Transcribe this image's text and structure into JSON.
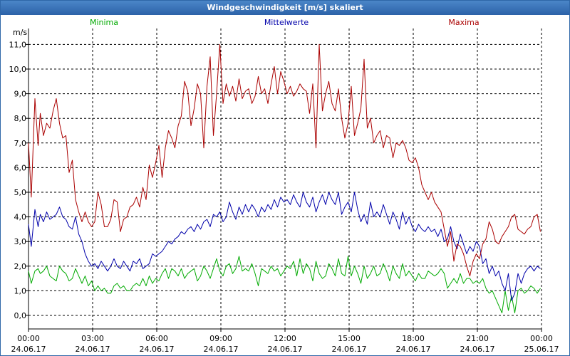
{
  "window": {
    "title": "Windgeschwindigkeit [m/s] skaliert"
  },
  "colors": {
    "min": "#00aa00",
    "mean": "#0000aa",
    "max": "#aa0000",
    "title_bg": "#2c62a8",
    "grid": "#000000"
  },
  "chart_data": {
    "type": "line",
    "title": "Windgeschwindigkeit [m/s] skaliert",
    "ylabel": "m/s",
    "ylim": [
      -0.4,
      11.5
    ],
    "yticks": [
      "0,0",
      "1,0",
      "2,0",
      "3,0",
      "4,0",
      "5,0",
      "6,0",
      "7,0",
      "8,0",
      "9,0",
      "10,0",
      "11,0"
    ],
    "yticks_values": [
      0,
      1,
      2,
      3,
      4,
      5,
      6,
      7,
      8,
      9,
      10,
      11
    ],
    "xlim_hours": [
      0,
      24
    ],
    "xticks": [
      {
        "time": "00:00",
        "date": "24.06.17"
      },
      {
        "time": "03:00",
        "date": "24.06.17"
      },
      {
        "time": "06:00",
        "date": "24.06.17"
      },
      {
        "time": "09:00",
        "date": "24.06.17"
      },
      {
        "time": "12:00",
        "date": "24.06.17"
      },
      {
        "time": "15:00",
        "date": "24.06.17"
      },
      {
        "time": "18:00",
        "date": "24.06.17"
      },
      {
        "time": "21:00",
        "date": "24.06.17"
      },
      {
        "time": "00:00",
        "date": "25.06.17"
      }
    ],
    "grid": true,
    "series": [
      {
        "name": "Minima",
        "color": "#00aa00",
        "t": [
          0.0,
          0.13,
          0.3,
          0.45,
          0.55,
          0.7,
          0.85,
          1.0,
          1.15,
          1.3,
          1.45,
          1.6,
          1.75,
          1.9,
          2.05,
          2.2,
          2.35,
          2.5,
          2.65,
          2.8,
          2.95,
          3.1,
          3.25,
          3.4,
          3.55,
          3.7,
          3.85,
          4.0,
          4.15,
          4.3,
          4.45,
          4.6,
          4.75,
          4.9,
          5.05,
          5.2,
          5.35,
          5.5,
          5.65,
          5.8,
          5.95,
          6.1,
          6.25,
          6.4,
          6.55,
          6.7,
          6.85,
          7.0,
          7.15,
          7.3,
          7.45,
          7.6,
          7.75,
          7.9,
          8.05,
          8.2,
          8.35,
          8.5,
          8.65,
          8.8,
          8.95,
          9.1,
          9.25,
          9.4,
          9.55,
          9.7,
          9.85,
          10.0,
          10.15,
          10.3,
          10.45,
          10.6,
          10.75,
          10.9,
          11.05,
          11.2,
          11.35,
          11.5,
          11.65,
          11.8,
          11.95,
          12.1,
          12.25,
          12.4,
          12.55,
          12.7,
          12.85,
          13.0,
          13.15,
          13.3,
          13.45,
          13.6,
          13.75,
          13.9,
          14.05,
          14.2,
          14.35,
          14.5,
          14.65,
          14.8,
          14.95,
          15.1,
          15.25,
          15.4,
          15.55,
          15.7,
          15.85,
          16.0,
          16.15,
          16.3,
          16.45,
          16.6,
          16.75,
          16.9,
          17.05,
          17.2,
          17.35,
          17.5,
          17.65,
          17.8,
          17.95,
          18.1,
          18.25,
          18.4,
          18.55,
          18.7,
          18.85,
          19.0,
          19.15,
          19.3,
          19.45,
          19.6,
          19.75,
          19.9,
          20.05,
          20.2,
          20.35,
          20.5,
          20.65,
          20.8,
          20.95,
          21.1,
          21.25,
          21.4,
          21.55,
          21.7,
          21.85,
          22.0,
          22.15,
          22.3,
          22.45,
          22.6,
          22.75,
          22.9,
          23.05,
          23.2,
          23.35,
          23.5,
          23.65,
          23.8,
          23.95
        ],
        "v": [
          1.8,
          1.3,
          1.8,
          1.9,
          1.7,
          1.8,
          2.0,
          1.6,
          1.5,
          1.4,
          2.0,
          1.8,
          1.7,
          1.4,
          1.5,
          1.9,
          1.6,
          1.3,
          1.6,
          1.2,
          1.4,
          1.0,
          1.2,
          1.0,
          1.1,
          0.9,
          0.9,
          1.2,
          1.3,
          1.1,
          1.2,
          1.0,
          1.0,
          1.2,
          1.3,
          1.2,
          1.5,
          1.2,
          1.6,
          1.3,
          1.5,
          1.4,
          1.7,
          1.9,
          1.5,
          1.9,
          1.8,
          1.6,
          1.9,
          1.5,
          1.7,
          1.8,
          1.9,
          1.4,
          1.6,
          2.0,
          1.8,
          1.5,
          1.9,
          2.3,
          1.8,
          1.6,
          2.0,
          2.1,
          1.7,
          1.9,
          2.4,
          1.8,
          1.9,
          1.8,
          2.1,
          1.7,
          1.2,
          1.9,
          1.8,
          1.7,
          2.0,
          1.8,
          1.9,
          1.6,
          1.8,
          2.0,
          1.9,
          2.2,
          1.6,
          2.3,
          1.7,
          2.1,
          1.9,
          1.4,
          2.2,
          1.7,
          1.5,
          1.6,
          2.1,
          1.9,
          1.6,
          2.3,
          1.7,
          1.6,
          2.4,
          1.6,
          2.0,
          1.7,
          1.3,
          2.0,
          1.5,
          1.7,
          2.0,
          1.6,
          1.7,
          2.1,
          1.8,
          1.4,
          2.0,
          1.7,
          1.5,
          2.1,
          1.6,
          1.8,
          1.6,
          1.4,
          1.7,
          1.5,
          1.5,
          1.8,
          1.7,
          1.6,
          1.7,
          1.9,
          1.7,
          1.1,
          1.3,
          1.5,
          1.3,
          1.7,
          1.3,
          1.5,
          1.5,
          1.3,
          1.4,
          1.3,
          1.5,
          1.1,
          0.9,
          1.0,
          0.7,
          0.4,
          0.1,
          1.0,
          0.2,
          0.8,
          0.1,
          1.0,
          1.1,
          0.9,
          1.0,
          1.2,
          1.1,
          0.9,
          1.1,
          1.2,
          1.0
        ]
      },
      {
        "name": "Mittelwerte",
        "color": "#0000aa",
        "t": [
          0.0,
          0.13,
          0.3,
          0.45,
          0.55,
          0.7,
          0.85,
          1.0,
          1.15,
          1.3,
          1.45,
          1.6,
          1.75,
          1.9,
          2.05,
          2.2,
          2.35,
          2.5,
          2.65,
          2.8,
          2.95,
          3.1,
          3.25,
          3.4,
          3.55,
          3.7,
          3.85,
          4.0,
          4.15,
          4.3,
          4.45,
          4.6,
          4.75,
          4.9,
          5.05,
          5.2,
          5.35,
          5.5,
          5.65,
          5.8,
          5.95,
          6.1,
          6.25,
          6.4,
          6.55,
          6.7,
          6.85,
          7.0,
          7.15,
          7.3,
          7.45,
          7.6,
          7.75,
          7.9,
          8.05,
          8.2,
          8.35,
          8.5,
          8.65,
          8.8,
          8.95,
          9.1,
          9.25,
          9.4,
          9.55,
          9.7,
          9.85,
          10.0,
          10.15,
          10.3,
          10.45,
          10.6,
          10.75,
          10.9,
          11.05,
          11.2,
          11.35,
          11.5,
          11.65,
          11.8,
          11.95,
          12.1,
          12.25,
          12.4,
          12.55,
          12.7,
          12.85,
          13.0,
          13.15,
          13.3,
          13.45,
          13.6,
          13.75,
          13.9,
          14.05,
          14.2,
          14.35,
          14.5,
          14.65,
          14.8,
          14.95,
          15.1,
          15.25,
          15.4,
          15.55,
          15.7,
          15.85,
          16.0,
          16.15,
          16.3,
          16.45,
          16.6,
          16.75,
          16.9,
          17.05,
          17.2,
          17.35,
          17.5,
          17.65,
          17.8,
          17.95,
          18.1,
          18.25,
          18.4,
          18.55,
          18.7,
          18.85,
          19.0,
          19.15,
          19.3,
          19.45,
          19.6,
          19.75,
          19.9,
          20.05,
          20.2,
          20.35,
          20.5,
          20.65,
          20.8,
          20.95,
          21.1,
          21.25,
          21.4,
          21.55,
          21.7,
          21.85,
          22.0,
          22.15,
          22.3,
          22.45,
          22.6,
          22.75,
          22.9,
          23.05,
          23.2,
          23.35,
          23.5,
          23.65,
          23.8,
          23.95
        ],
        "v": [
          3.7,
          2.8,
          4.3,
          3.6,
          4.1,
          3.8,
          4.2,
          3.9,
          4.0,
          4.1,
          4.4,
          4.0,
          3.9,
          3.6,
          3.5,
          4.0,
          3.3,
          3.0,
          2.5,
          2.2,
          2.0,
          2.1,
          1.9,
          2.2,
          2.0,
          1.8,
          2.0,
          2.3,
          2.0,
          1.9,
          2.2,
          2.0,
          1.8,
          2.2,
          2.1,
          2.3,
          1.9,
          2.0,
          2.1,
          2.5,
          2.4,
          2.5,
          2.6,
          2.8,
          3.0,
          2.9,
          3.1,
          3.2,
          3.4,
          3.3,
          3.5,
          3.6,
          3.4,
          3.7,
          3.5,
          3.8,
          3.9,
          3.6,
          4.1,
          4.0,
          4.2,
          3.8,
          4.0,
          4.6,
          4.2,
          3.9,
          4.4,
          4.1,
          4.5,
          4.2,
          4.5,
          4.3,
          4.0,
          4.4,
          4.2,
          4.5,
          4.3,
          4.7,
          4.4,
          4.8,
          4.6,
          4.7,
          4.5,
          4.9,
          4.6,
          4.4,
          5.0,
          4.6,
          4.4,
          4.8,
          4.2,
          4.6,
          4.9,
          4.5,
          5.0,
          4.7,
          4.5,
          5.0,
          4.1,
          4.4,
          4.6,
          4.2,
          5.0,
          4.3,
          3.8,
          4.1,
          3.7,
          4.6,
          4.0,
          4.2,
          4.0,
          4.5,
          4.1,
          3.7,
          4.2,
          3.9,
          3.5,
          4.2,
          3.7,
          4.0,
          3.6,
          3.4,
          3.7,
          3.5,
          3.4,
          3.6,
          3.4,
          3.5,
          3.2,
          3.5,
          3.0,
          3.1,
          3.6,
          3.0,
          2.7,
          3.3,
          2.9,
          2.5,
          2.8,
          2.6,
          3.0,
          2.8,
          2.1,
          2.3,
          1.7,
          2.0,
          1.6,
          1.8,
          1.3,
          1.0,
          1.7,
          0.6,
          0.9,
          1.7,
          1.3,
          1.7,
          1.9,
          2.0,
          1.8,
          2.0,
          1.9
        ]
      },
      {
        "name": "Maxima",
        "color": "#aa0000",
        "t": [
          0.0,
          0.13,
          0.3,
          0.45,
          0.55,
          0.7,
          0.85,
          1.0,
          1.15,
          1.3,
          1.45,
          1.6,
          1.75,
          1.9,
          2.05,
          2.2,
          2.35,
          2.5,
          2.65,
          2.8,
          2.95,
          3.1,
          3.25,
          3.4,
          3.55,
          3.7,
          3.85,
          4.0,
          4.15,
          4.3,
          4.45,
          4.6,
          4.75,
          4.9,
          5.05,
          5.2,
          5.35,
          5.5,
          5.65,
          5.8,
          5.95,
          6.1,
          6.25,
          6.4,
          6.55,
          6.7,
          6.85,
          7.0,
          7.15,
          7.3,
          7.45,
          7.6,
          7.75,
          7.9,
          8.05,
          8.2,
          8.35,
          8.5,
          8.65,
          8.8,
          8.95,
          9.1,
          9.25,
          9.4,
          9.55,
          9.7,
          9.85,
          10.0,
          10.15,
          10.3,
          10.45,
          10.6,
          10.75,
          10.9,
          11.05,
          11.2,
          11.35,
          11.5,
          11.65,
          11.8,
          11.95,
          12.1,
          12.25,
          12.4,
          12.55,
          12.7,
          12.85,
          13.0,
          13.15,
          13.3,
          13.45,
          13.6,
          13.75,
          13.9,
          14.05,
          14.2,
          14.35,
          14.5,
          14.65,
          14.8,
          14.95,
          15.1,
          15.25,
          15.4,
          15.55,
          15.7,
          15.85,
          16.0,
          16.15,
          16.3,
          16.45,
          16.6,
          16.75,
          16.9,
          17.05,
          17.2,
          17.35,
          17.5,
          17.65,
          17.8,
          17.95,
          18.1,
          18.25,
          18.4,
          18.55,
          18.7,
          18.85,
          19.0,
          19.15,
          19.3,
          19.45,
          19.6,
          19.75,
          19.9,
          20.05,
          20.2,
          20.35,
          20.5,
          20.65,
          20.8,
          20.95,
          21.1,
          21.25,
          21.4,
          21.55,
          21.7,
          21.85,
          22.0,
          22.15,
          22.3,
          22.45,
          22.6,
          22.75,
          22.9,
          23.05,
          23.2,
          23.35,
          23.5,
          23.65,
          23.8,
          23.95
        ],
        "v": [
          7.0,
          4.8,
          8.8,
          6.9,
          8.2,
          7.3,
          7.8,
          7.6,
          8.3,
          8.8,
          7.8,
          7.2,
          7.3,
          5.8,
          6.3,
          4.7,
          4.2,
          3.8,
          4.2,
          3.8,
          3.6,
          3.8,
          5.0,
          4.5,
          3.6,
          3.6,
          3.9,
          4.7,
          4.6,
          3.4,
          3.9,
          4.0,
          4.4,
          4.5,
          4.8,
          4.4,
          5.2,
          4.7,
          6.1,
          5.6,
          6.2,
          6.9,
          5.6,
          6.8,
          7.5,
          7.2,
          6.8,
          7.7,
          8.1,
          9.5,
          9.1,
          7.7,
          8.4,
          9.4,
          9.0,
          6.8,
          9.3,
          10.5,
          7.3,
          9.0,
          11.0,
          8.6,
          9.4,
          8.9,
          9.3,
          8.7,
          9.6,
          8.8,
          9.1,
          9.2,
          8.6,
          8.9,
          9.7,
          9.0,
          9.2,
          8.6,
          9.4,
          10.1,
          9.0,
          9.9,
          9.5,
          9.0,
          9.3,
          8.9,
          9.1,
          9.4,
          9.2,
          9.1,
          8.2,
          9.4,
          6.8,
          11.0,
          8.3,
          9.0,
          9.5,
          8.6,
          8.3,
          9.2,
          8.0,
          7.2,
          7.8,
          9.3,
          7.3,
          7.8,
          8.4,
          10.4,
          7.6,
          8.0,
          7.0,
          7.3,
          7.5,
          6.8,
          7.3,
          7.2,
          6.4,
          7.0,
          6.9,
          7.1,
          6.8,
          6.3,
          6.2,
          6.4,
          6.0,
          5.3,
          5.0,
          4.7,
          5.0,
          4.6,
          4.4,
          4.2,
          3.5,
          2.8,
          3.4,
          2.2,
          2.9,
          2.8,
          2.5,
          2.0,
          1.6,
          2.2,
          2.5,
          2.3,
          2.9,
          3.1,
          3.8,
          3.5,
          3.0,
          2.9,
          3.2,
          3.4,
          3.6,
          4.0,
          4.1,
          3.5,
          3.4,
          3.3,
          3.5,
          3.6,
          4.0,
          4.1,
          3.4
        ]
      }
    ]
  }
}
